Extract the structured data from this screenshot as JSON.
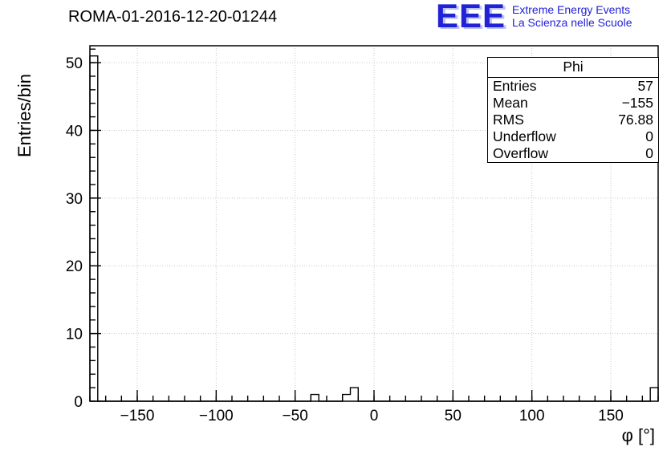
{
  "title": "ROMA-01-2016-12-20-01244",
  "logo": {
    "text": "EEE",
    "line1": "Extreme Energy Events",
    "line2": "La Scienza nelle Scuole",
    "color": "#2121d6"
  },
  "stats": {
    "title": "Phi",
    "rows": [
      {
        "label": "Entries",
        "value": "57"
      },
      {
        "label": "Mean",
        "value": "−155"
      },
      {
        "label": "RMS",
        "value": "76.88"
      },
      {
        "label": "Underflow",
        "value": "0"
      },
      {
        "label": "Overflow",
        "value": "0"
      }
    ]
  },
  "chart_data": {
    "type": "bar",
    "subtype": "histogram-step",
    "title": "ROMA-01-2016-12-20-01244",
    "xlabel": "φ [°]",
    "ylabel": "Entries/bin",
    "xlim": [
      -180,
      180
    ],
    "ylim": [
      0,
      52.5
    ],
    "bin_width": 5,
    "bins_nonzero": [
      {
        "x0": -180,
        "x1": -175,
        "count": 51
      },
      {
        "x0": -40,
        "x1": -35,
        "count": 1
      },
      {
        "x0": -20,
        "x1": -15,
        "count": 1
      },
      {
        "x0": -15,
        "x1": -10,
        "count": 2
      },
      {
        "x0": 175,
        "x1": 180,
        "count": 2
      }
    ],
    "other_bins_count": 0,
    "total_entries": 57,
    "x_major_ticks": [
      -150,
      -100,
      -50,
      0,
      50,
      100,
      150
    ],
    "x_minor_step": 10,
    "y_major_ticks": [
      0,
      10,
      20,
      30,
      40,
      50
    ],
    "y_minor_step": 2,
    "grid": true,
    "grid_color": "#c8c8c8",
    "line_color": "#000000",
    "legend_position": "none",
    "stats_box": {
      "title": "Phi",
      "entries": 57,
      "mean": -155,
      "rms": 76.88,
      "underflow": 0,
      "overflow": 0
    }
  }
}
